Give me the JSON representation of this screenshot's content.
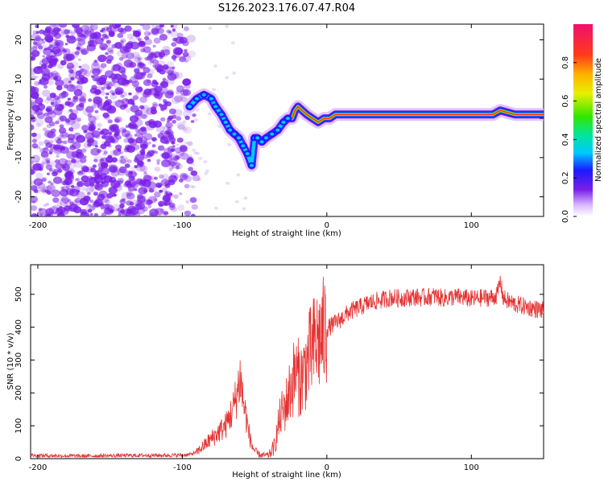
{
  "title": "S126.2023.176.07.47.R04",
  "colors": {
    "snr_line": "#e53333",
    "axis": "#000000",
    "scatter": "#7a1ee8"
  },
  "colorbar": {
    "label": "Normalized spectral amplitude",
    "range": [
      0.0,
      1.0
    ],
    "ticks": [
      "0.0",
      "0.2",
      "0.4",
      "0.6",
      "0.8"
    ],
    "tick_values": [
      0.0,
      0.2,
      0.4,
      0.6,
      0.8
    ]
  },
  "chart_data": [
    {
      "type": "heatmap",
      "xlabel": "Height of straight line (km)",
      "ylabel": "Frequency (Hz)",
      "xlim": [
        -205,
        150
      ],
      "ylim": [
        -25,
        24
      ],
      "xticks": [
        -200,
        -100,
        0,
        100
      ],
      "yticks": [
        -20,
        -10,
        0,
        10,
        20
      ],
      "ridge": {
        "x": [
          -95,
          -90,
          -85,
          -80,
          -77,
          -73,
          -70,
          -67,
          -64,
          -61,
          -58,
          -55,
          -52,
          -50,
          -48,
          -45,
          -42,
          -38,
          -34,
          -30,
          -27,
          -24,
          -22,
          -20,
          -17,
          -14,
          -10,
          -6,
          -2,
          2,
          6,
          10,
          20,
          40,
          60,
          70,
          75,
          80,
          85,
          90,
          95,
          100,
          105,
          110,
          115,
          120,
          130,
          140,
          150
        ],
        "y": [
          3,
          5,
          6,
          5,
          3,
          1,
          -1,
          -3,
          -4,
          -5,
          -7,
          -9,
          -12,
          -5,
          -5,
          -6,
          -5,
          -4,
          -3,
          -1,
          0,
          0,
          2,
          3,
          2,
          1,
          0,
          -1,
          0,
          0,
          1,
          1,
          1,
          1,
          1,
          1,
          1,
          1,
          1,
          1,
          1,
          1,
          1,
          1,
          1,
          2,
          1,
          1,
          1
        ]
      }
    },
    {
      "type": "line",
      "xlabel": "Height of straight line (km)",
      "ylabel": "SNR (10 * v/v)",
      "xlim": [
        -205,
        150
      ],
      "ylim": [
        0,
        590
      ],
      "xticks": [
        -200,
        -100,
        0,
        100
      ],
      "yticks": [
        0,
        100,
        200,
        300,
        400,
        500
      ],
      "series": [
        {
          "x": [
            -205,
            -190,
            -170,
            -150,
            -130,
            -110,
            -100,
            -95,
            -90,
            -85,
            -80,
            -75,
            -70,
            -65,
            -62,
            -60,
            -58,
            -56,
            -54,
            -52,
            -50,
            -48,
            -45,
            -40,
            -36,
            -34,
            -32,
            -30,
            -28,
            -26,
            -24,
            -22,
            -20,
            -18,
            -16,
            -14,
            -12,
            -10,
            -8,
            -6,
            -4,
            -2,
            0,
            5,
            10,
            15,
            20,
            25,
            30,
            35,
            40,
            45,
            50,
            55,
            60,
            65,
            70,
            75,
            80,
            85,
            90,
            95,
            100,
            105,
            110,
            115,
            118,
            120,
            122,
            125,
            130,
            135,
            140,
            145,
            150
          ],
          "y": [
            10,
            9,
            8,
            9,
            10,
            10,
            11,
            12,
            20,
            40,
            60,
            80,
            100,
            150,
            200,
            250,
            180,
            130,
            80,
            40,
            25,
            15,
            10,
            10,
            40,
            90,
            130,
            150,
            170,
            200,
            230,
            260,
            250,
            240,
            260,
            290,
            310,
            330,
            350,
            360,
            370,
            380,
            395,
            410,
            425,
            445,
            455,
            465,
            475,
            480,
            485,
            490,
            488,
            490,
            492,
            490,
            492,
            495,
            488,
            490,
            492,
            490,
            485,
            488,
            490,
            490,
            500,
            540,
            490,
            480,
            470,
            465,
            460,
            455,
            450
          ]
        }
      ]
    }
  ]
}
